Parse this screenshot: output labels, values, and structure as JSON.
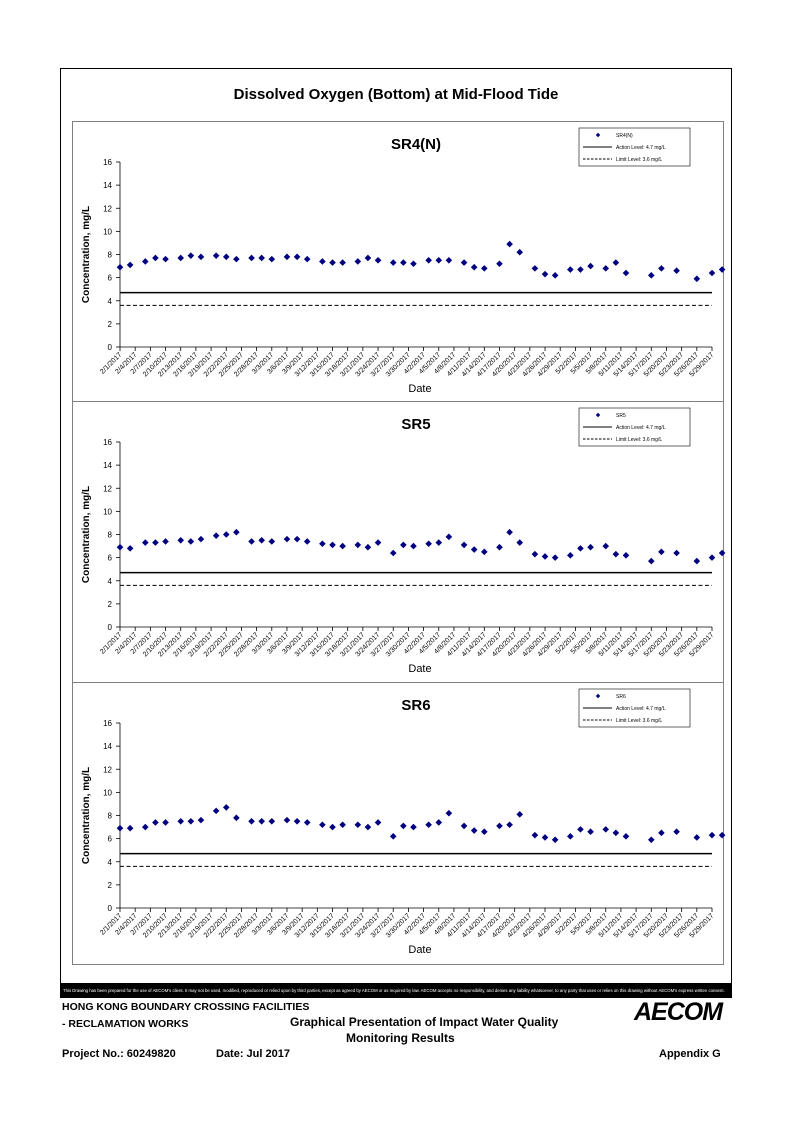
{
  "page": {
    "title": "Dissolved Oxygen (Bottom) at Mid-Flood Tide",
    "disclaimer": "This Drawing has been prepared for the use of AECOM's client. It may not be used, modified, reproduced or relied upon by third parties, except as agreed by AECOM or as required by law. AECOM accepts no responsibility, and denies any liability whatsoever, to any party that uses or relies on this drawing without AECOM's express written consent.",
    "footer": {
      "project_line1": "HONG KONG BOUNDARY CROSSING FACILITIES",
      "project_line2": "- RECLAMATION WORKS",
      "doc_title_line1": "Graphical Presentation of Impact Water Quality",
      "doc_title_line2": "Monitoring Results",
      "project_no": "Project No.: 60249820",
      "date": "Date: Jul 2017",
      "appendix": "Appendix G",
      "logo": "AECOM"
    }
  },
  "chart_data": [
    {
      "type": "scatter",
      "title": "SR4(N)",
      "xlabel": "Date",
      "ylabel": "Concentration, mg/L",
      "ylim": [
        0,
        16
      ],
      "yticks": [
        0,
        2,
        4,
        6,
        8,
        10,
        12,
        14,
        16
      ],
      "xticks": [
        "2/1/2017",
        "2/4/2017",
        "2/7/2017",
        "2/10/2017",
        "2/13/2017",
        "2/16/2017",
        "2/19/2017",
        "2/22/2017",
        "2/25/2017",
        "2/28/2017",
        "3/3/2017",
        "3/6/2017",
        "3/9/2017",
        "3/12/2017",
        "3/15/2017",
        "3/18/2017",
        "3/21/2017",
        "3/24/2017",
        "3/27/2017",
        "3/30/2017",
        "4/2/2017",
        "4/5/2017",
        "4/8/2017",
        "4/11/2017",
        "4/14/2017",
        "4/17/2017",
        "4/20/2017",
        "4/23/2017",
        "4/26/2017",
        "4/29/2017",
        "5/2/2017",
        "5/5/2017",
        "5/8/2017",
        "5/11/2017",
        "5/14/2017",
        "5/17/2017",
        "5/20/2017",
        "5/23/2017",
        "5/26/2017",
        "5/29/2017"
      ],
      "grid": false,
      "legend_position": "top-right",
      "series": [
        {
          "name": "SR4(N)",
          "color": "#000080",
          "marker": "diamond",
          "points": [
            [
              "2/1/2017",
              6.9
            ],
            [
              "2/3/2017",
              7.1
            ],
            [
              "2/6/2017",
              7.4
            ],
            [
              "2/8/2017",
              7.7
            ],
            [
              "2/10/2017",
              7.6
            ],
            [
              "2/13/2017",
              7.7
            ],
            [
              "2/15/2017",
              7.9
            ],
            [
              "2/17/2017",
              7.8
            ],
            [
              "2/20/2017",
              7.9
            ],
            [
              "2/22/2017",
              7.8
            ],
            [
              "2/24/2017",
              7.6
            ],
            [
              "2/27/2017",
              7.7
            ],
            [
              "3/1/2017",
              7.7
            ],
            [
              "3/3/2017",
              7.6
            ],
            [
              "3/6/2017",
              7.8
            ],
            [
              "3/8/2017",
              7.8
            ],
            [
              "3/10/2017",
              7.6
            ],
            [
              "3/13/2017",
              7.4
            ],
            [
              "3/15/2017",
              7.3
            ],
            [
              "3/17/2017",
              7.3
            ],
            [
              "3/20/2017",
              7.4
            ],
            [
              "3/22/2017",
              7.7
            ],
            [
              "3/24/2017",
              7.5
            ],
            [
              "3/27/2017",
              7.3
            ],
            [
              "3/29/2017",
              7.3
            ],
            [
              "3/31/2017",
              7.2
            ],
            [
              "4/3/2017",
              7.5
            ],
            [
              "4/5/2017",
              7.5
            ],
            [
              "4/7/2017",
              7.5
            ],
            [
              "4/10/2017",
              7.3
            ],
            [
              "4/12/2017",
              6.9
            ],
            [
              "4/14/2017",
              6.8
            ],
            [
              "4/17/2017",
              7.2
            ],
            [
              "4/19/2017",
              8.9
            ],
            [
              "4/21/2017",
              8.2
            ],
            [
              "4/24/2017",
              6.8
            ],
            [
              "4/26/2017",
              6.3
            ],
            [
              "4/28/2017",
              6.2
            ],
            [
              "5/1/2017",
              6.7
            ],
            [
              "5/3/2017",
              6.7
            ],
            [
              "5/5/2017",
              7.0
            ],
            [
              "5/8/2017",
              6.8
            ],
            [
              "5/10/2017",
              7.3
            ],
            [
              "5/12/2017",
              6.4
            ],
            [
              "5/17/2017",
              6.2
            ],
            [
              "5/19/2017",
              6.8
            ],
            [
              "5/22/2017",
              6.6
            ],
            [
              "5/26/2017",
              5.9
            ],
            [
              "5/29/2017",
              6.4
            ],
            [
              "5/31/2017",
              6.7
            ]
          ]
        },
        {
          "name": "Action Level: 4.7 mg/L",
          "color": "#000000",
          "line": "solid",
          "value": 4.7
        },
        {
          "name": "Limit Level: 3.6 mg/L",
          "color": "#000000",
          "line": "dashed",
          "value": 3.6
        }
      ]
    },
    {
      "type": "scatter",
      "title": "SR5",
      "xlabel": "Date",
      "ylabel": "Concentration, mg/L",
      "ylim": [
        0,
        16
      ],
      "yticks": [
        0,
        2,
        4,
        6,
        8,
        10,
        12,
        14,
        16
      ],
      "xticks": [
        "2/1/2017",
        "2/4/2017",
        "2/7/2017",
        "2/10/2017",
        "2/13/2017",
        "2/16/2017",
        "2/19/2017",
        "2/22/2017",
        "2/25/2017",
        "2/28/2017",
        "3/3/2017",
        "3/6/2017",
        "3/9/2017",
        "3/12/2017",
        "3/15/2017",
        "3/18/2017",
        "3/21/2017",
        "3/24/2017",
        "3/27/2017",
        "3/30/2017",
        "4/2/2017",
        "4/5/2017",
        "4/8/2017",
        "4/11/2017",
        "4/14/2017",
        "4/17/2017",
        "4/20/2017",
        "4/23/2017",
        "4/26/2017",
        "4/29/2017",
        "5/2/2017",
        "5/5/2017",
        "5/8/2017",
        "5/11/2017",
        "5/14/2017",
        "5/17/2017",
        "5/20/2017",
        "5/23/2017",
        "5/26/2017",
        "5/29/2017"
      ],
      "grid": false,
      "legend_position": "top-right",
      "series": [
        {
          "name": "SR5",
          "color": "#000080",
          "marker": "diamond",
          "points": [
            [
              "2/1/2017",
              6.9
            ],
            [
              "2/3/2017",
              6.8
            ],
            [
              "2/6/2017",
              7.3
            ],
            [
              "2/8/2017",
              7.3
            ],
            [
              "2/10/2017",
              7.4
            ],
            [
              "2/13/2017",
              7.5
            ],
            [
              "2/15/2017",
              7.4
            ],
            [
              "2/17/2017",
              7.6
            ],
            [
              "2/20/2017",
              7.9
            ],
            [
              "2/22/2017",
              8.0
            ],
            [
              "2/24/2017",
              8.2
            ],
            [
              "2/27/2017",
              7.4
            ],
            [
              "3/1/2017",
              7.5
            ],
            [
              "3/3/2017",
              7.4
            ],
            [
              "3/6/2017",
              7.6
            ],
            [
              "3/8/2017",
              7.6
            ],
            [
              "3/10/2017",
              7.4
            ],
            [
              "3/13/2017",
              7.2
            ],
            [
              "3/15/2017",
              7.1
            ],
            [
              "3/17/2017",
              7.0
            ],
            [
              "3/20/2017",
              7.1
            ],
            [
              "3/22/2017",
              6.9
            ],
            [
              "3/24/2017",
              7.3
            ],
            [
              "3/27/2017",
              6.4
            ],
            [
              "3/29/2017",
              7.1
            ],
            [
              "3/31/2017",
              7.0
            ],
            [
              "4/3/2017",
              7.2
            ],
            [
              "4/5/2017",
              7.3
            ],
            [
              "4/7/2017",
              7.8
            ],
            [
              "4/10/2017",
              7.1
            ],
            [
              "4/12/2017",
              6.7
            ],
            [
              "4/14/2017",
              6.5
            ],
            [
              "4/17/2017",
              6.9
            ],
            [
              "4/19/2017",
              8.2
            ],
            [
              "4/21/2017",
              7.3
            ],
            [
              "4/24/2017",
              6.3
            ],
            [
              "4/26/2017",
              6.1
            ],
            [
              "4/28/2017",
              6.0
            ],
            [
              "5/1/2017",
              6.2
            ],
            [
              "5/3/2017",
              6.8
            ],
            [
              "5/5/2017",
              6.9
            ],
            [
              "5/8/2017",
              7.0
            ],
            [
              "5/10/2017",
              6.3
            ],
            [
              "5/12/2017",
              6.2
            ],
            [
              "5/17/2017",
              5.7
            ],
            [
              "5/19/2017",
              6.5
            ],
            [
              "5/22/2017",
              6.4
            ],
            [
              "5/26/2017",
              5.7
            ],
            [
              "5/29/2017",
              6.0
            ],
            [
              "5/31/2017",
              6.4
            ]
          ]
        },
        {
          "name": "Action Level: 4.7 mg/L",
          "color": "#000000",
          "line": "solid",
          "value": 4.7
        },
        {
          "name": "Limit Level: 3.6 mg/L",
          "color": "#000000",
          "line": "dashed",
          "value": 3.6
        }
      ]
    },
    {
      "type": "scatter",
      "title": "SR6",
      "xlabel": "Date",
      "ylabel": "Concentration, mg/L",
      "ylim": [
        0,
        16
      ],
      "yticks": [
        0,
        2,
        4,
        6,
        8,
        10,
        12,
        14,
        16
      ],
      "xticks": [
        "2/1/2017",
        "2/4/2017",
        "2/7/2017",
        "2/10/2017",
        "2/13/2017",
        "2/16/2017",
        "2/19/2017",
        "2/22/2017",
        "2/25/2017",
        "2/28/2017",
        "3/3/2017",
        "3/6/2017",
        "3/9/2017",
        "3/12/2017",
        "3/15/2017",
        "3/18/2017",
        "3/21/2017",
        "3/24/2017",
        "3/27/2017",
        "3/30/2017",
        "4/2/2017",
        "4/5/2017",
        "4/8/2017",
        "4/11/2017",
        "4/14/2017",
        "4/17/2017",
        "4/20/2017",
        "4/23/2017",
        "4/26/2017",
        "4/29/2017",
        "5/2/2017",
        "5/5/2017",
        "5/8/2017",
        "5/11/2017",
        "5/14/2017",
        "5/17/2017",
        "5/20/2017",
        "5/23/2017",
        "5/26/2017",
        "5/29/2017"
      ],
      "grid": false,
      "legend_position": "top-right",
      "series": [
        {
          "name": "SR6",
          "color": "#000080",
          "marker": "diamond",
          "points": [
            [
              "2/1/2017",
              6.9
            ],
            [
              "2/3/2017",
              6.9
            ],
            [
              "2/6/2017",
              7.0
            ],
            [
              "2/8/2017",
              7.4
            ],
            [
              "2/10/2017",
              7.4
            ],
            [
              "2/13/2017",
              7.5
            ],
            [
              "2/15/2017",
              7.5
            ],
            [
              "2/17/2017",
              7.6
            ],
            [
              "2/20/2017",
              8.4
            ],
            [
              "2/22/2017",
              8.7
            ],
            [
              "2/24/2017",
              7.8
            ],
            [
              "2/27/2017",
              7.5
            ],
            [
              "3/1/2017",
              7.5
            ],
            [
              "3/3/2017",
              7.5
            ],
            [
              "3/6/2017",
              7.6
            ],
            [
              "3/8/2017",
              7.5
            ],
            [
              "3/10/2017",
              7.4
            ],
            [
              "3/13/2017",
              7.2
            ],
            [
              "3/15/2017",
              7.0
            ],
            [
              "3/17/2017",
              7.2
            ],
            [
              "3/20/2017",
              7.2
            ],
            [
              "3/22/2017",
              7.0
            ],
            [
              "3/24/2017",
              7.4
            ],
            [
              "3/27/2017",
              6.2
            ],
            [
              "3/29/2017",
              7.1
            ],
            [
              "3/31/2017",
              7.0
            ],
            [
              "4/3/2017",
              7.2
            ],
            [
              "4/5/2017",
              7.4
            ],
            [
              "4/7/2017",
              8.2
            ],
            [
              "4/10/2017",
              7.1
            ],
            [
              "4/12/2017",
              6.7
            ],
            [
              "4/14/2017",
              6.6
            ],
            [
              "4/17/2017",
              7.1
            ],
            [
              "4/19/2017",
              7.2
            ],
            [
              "4/21/2017",
              8.1
            ],
            [
              "4/24/2017",
              6.3
            ],
            [
              "4/26/2017",
              6.1
            ],
            [
              "4/28/2017",
              5.9
            ],
            [
              "5/1/2017",
              6.2
            ],
            [
              "5/3/2017",
              6.8
            ],
            [
              "5/5/2017",
              6.6
            ],
            [
              "5/8/2017",
              6.8
            ],
            [
              "5/10/2017",
              6.5
            ],
            [
              "5/12/2017",
              6.2
            ],
            [
              "5/17/2017",
              5.9
            ],
            [
              "5/19/2017",
              6.5
            ],
            [
              "5/22/2017",
              6.6
            ],
            [
              "5/26/2017",
              6.1
            ],
            [
              "5/29/2017",
              6.3
            ],
            [
              "5/31/2017",
              6.3
            ]
          ]
        },
        {
          "name": "Action Level: 4.7 mg/L",
          "color": "#000000",
          "line": "solid",
          "value": 4.7
        },
        {
          "name": "Limit Level: 3.6 mg/L",
          "color": "#000000",
          "line": "dashed",
          "value": 3.6
        }
      ]
    }
  ]
}
